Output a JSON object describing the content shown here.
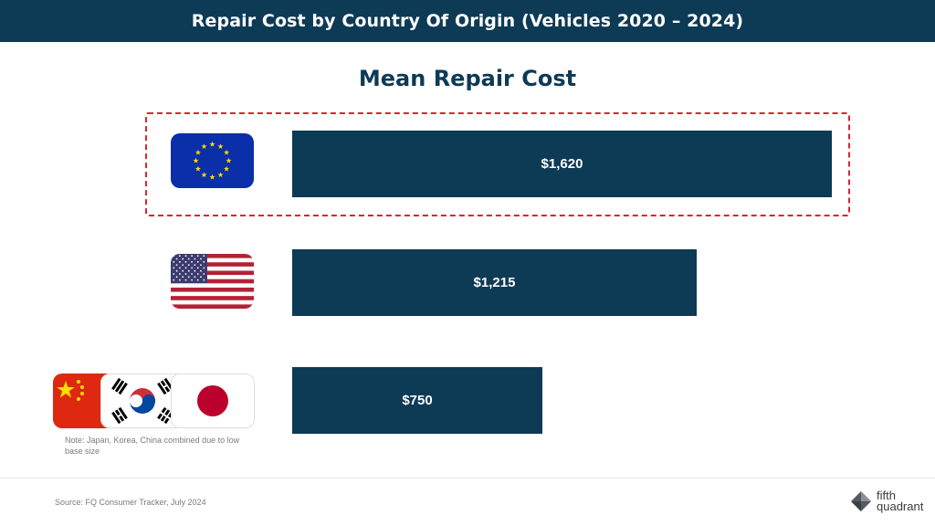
{
  "header": {
    "title": "Repair Cost by Country Of Origin (Vehicles 2020 – 2024)"
  },
  "chart_data": {
    "type": "bar",
    "orientation": "horizontal",
    "title": "Mean Repair Cost",
    "categories": [
      "EU flag",
      "USA flag",
      "China, Korea, Japan flags"
    ],
    "values": [
      1620,
      1215,
      750
    ],
    "value_labels": [
      "$1,620",
      "$1,215",
      "$750"
    ],
    "highlighted_index": 0,
    "xlim": [
      0,
      1620
    ],
    "bar_color": "#0d3a55",
    "highlight_color": "#d9262d"
  },
  "note": "Note: Japan, Korea, China combined due to low base size",
  "source": "Source: FQ Consumer Tracker, July 2024",
  "logo": {
    "line1": "fifth",
    "line2": "quadrant"
  }
}
